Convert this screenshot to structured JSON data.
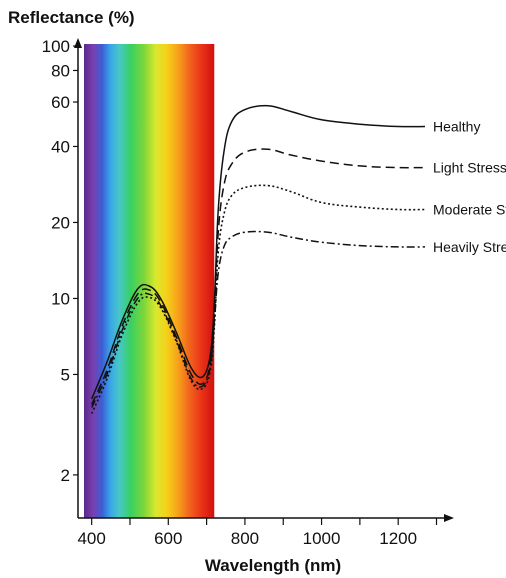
{
  "chart_data": {
    "type": "line",
    "title": "",
    "ylabel": "Reflectance (%)",
    "xlabel": "Wavelength (nm)",
    "yscale": "log",
    "ylim": [
      1.35,
      100
    ],
    "xlim": [
      380,
      1330
    ],
    "y_ticks": [
      2,
      5,
      10,
      20,
      40,
      60,
      80,
      100
    ],
    "x_ticks": [
      400,
      600,
      800,
      1000,
      1200
    ],
    "x_minor_ticks": [
      500,
      700,
      900,
      1100,
      1300
    ],
    "visible_spectrum_band": [
      380,
      720
    ],
    "series": [
      {
        "name": "Healthy",
        "style": "solid",
        "points": [
          [
            400,
            4.0
          ],
          [
            440,
            5.6
          ],
          [
            480,
            8.2
          ],
          [
            520,
            10.9
          ],
          [
            550,
            11.2
          ],
          [
            580,
            10.0
          ],
          [
            620,
            7.4
          ],
          [
            660,
            5.3
          ],
          [
            690,
            4.9
          ],
          [
            710,
            6.0
          ],
          [
            720,
            9.5
          ],
          [
            730,
            22
          ],
          [
            745,
            38
          ],
          [
            765,
            50
          ],
          [
            800,
            56
          ],
          [
            860,
            58
          ],
          [
            920,
            55
          ],
          [
            1000,
            51
          ],
          [
            1100,
            49
          ],
          [
            1200,
            48
          ],
          [
            1270,
            48
          ]
        ]
      },
      {
        "name": "Light Stress",
        "style": "dashed",
        "points": [
          [
            400,
            3.8
          ],
          [
            440,
            5.2
          ],
          [
            480,
            7.8
          ],
          [
            520,
            10.4
          ],
          [
            550,
            10.8
          ],
          [
            580,
            9.7
          ],
          [
            620,
            7.1
          ],
          [
            660,
            5.0
          ],
          [
            690,
            4.6
          ],
          [
            710,
            5.6
          ],
          [
            720,
            8.5
          ],
          [
            730,
            18
          ],
          [
            745,
            28
          ],
          [
            765,
            34
          ],
          [
            800,
            38
          ],
          [
            860,
            39
          ],
          [
            920,
            37
          ],
          [
            1000,
            35
          ],
          [
            1100,
            33.5
          ],
          [
            1200,
            33
          ],
          [
            1270,
            33
          ]
        ]
      },
      {
        "name": "Moderate Stress",
        "style": "dotted",
        "points": [
          [
            400,
            3.5
          ],
          [
            440,
            4.8
          ],
          [
            480,
            7.2
          ],
          [
            520,
            9.6
          ],
          [
            550,
            10.1
          ],
          [
            580,
            9.2
          ],
          [
            620,
            6.8
          ],
          [
            660,
            4.7
          ],
          [
            690,
            4.4
          ],
          [
            710,
            5.2
          ],
          [
            720,
            7.6
          ],
          [
            730,
            15
          ],
          [
            745,
            21.5
          ],
          [
            765,
            25.5
          ],
          [
            800,
            27.5
          ],
          [
            860,
            28
          ],
          [
            920,
            26.5
          ],
          [
            1000,
            24
          ],
          [
            1100,
            23
          ],
          [
            1200,
            22.5
          ],
          [
            1270,
            22.5
          ]
        ]
      },
      {
        "name": "Heavily Stress",
        "style": "dashdot",
        "points": [
          [
            400,
            3.7
          ],
          [
            440,
            5.0
          ],
          [
            480,
            7.5
          ],
          [
            520,
            10.0
          ],
          [
            550,
            10.4
          ],
          [
            580,
            9.4
          ],
          [
            620,
            6.9
          ],
          [
            660,
            4.8
          ],
          [
            690,
            4.5
          ],
          [
            710,
            5.4
          ],
          [
            720,
            8.0
          ],
          [
            730,
            12.5
          ],
          [
            745,
            16
          ],
          [
            765,
            17.5
          ],
          [
            800,
            18.3
          ],
          [
            860,
            18.3
          ],
          [
            920,
            17.5
          ],
          [
            1000,
            16.7
          ],
          [
            1100,
            16.2
          ],
          [
            1200,
            16
          ],
          [
            1270,
            16
          ]
        ]
      }
    ]
  }
}
